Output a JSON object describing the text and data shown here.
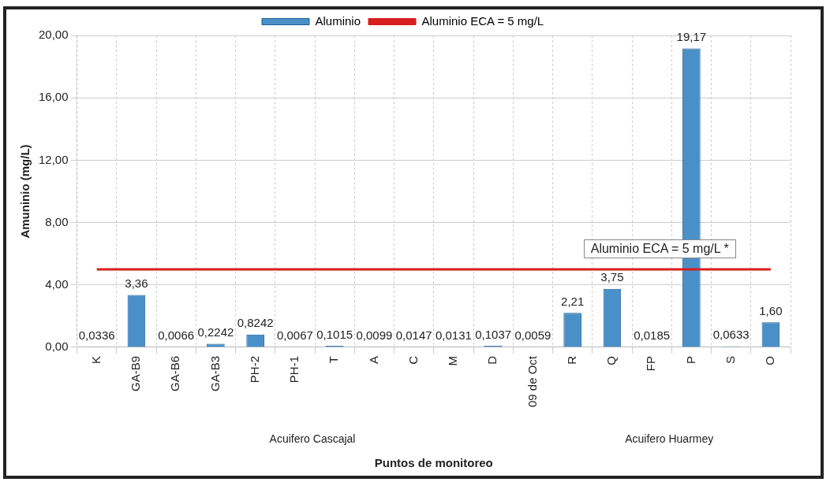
{
  "chart_data": {
    "type": "bar",
    "xlabel": "Puntos de monitoreo",
    "ylabel": "Amuninio (mg/L)",
    "categories": [
      "K",
      "GA-B9",
      "GA-B6",
      "GA-B3",
      "PH-2",
      "PH-1",
      "T",
      "A",
      "C",
      "M",
      "D",
      "09 de Oct",
      "R",
      "Q",
      "FP",
      "P",
      "S",
      "O"
    ],
    "series": [
      {
        "name": "Aluminio",
        "color": "#4a90c8",
        "values": [
          0.0336,
          3.36,
          0.0066,
          0.2242,
          0.8242,
          0.0067,
          0.1015,
          0.0099,
          0.0147,
          0.0131,
          0.1037,
          0.0059,
          2.21,
          3.75,
          0.0185,
          19.17,
          0.0633,
          1.6
        ],
        "value_labels": [
          "0,0336",
          "3,36",
          "0,0066",
          "0,2242",
          "0,8242",
          "0,0067",
          "0,1015",
          "0,0099",
          "0,0147",
          "0,0131",
          "0,1037",
          "0,0059",
          "2,21",
          "3,75",
          "0,0185",
          "19,17",
          "0,0633",
          "1,60"
        ]
      },
      {
        "type": "line",
        "name": "Aluminio ECA = 5 mg/L",
        "color": "#d81e1e",
        "values": [
          5,
          5,
          5,
          5,
          5,
          5,
          5,
          5,
          5,
          5,
          5,
          5,
          5,
          5,
          5,
          5,
          5,
          5
        ]
      }
    ],
    "ylim": [
      0,
      20
    ],
    "yticks": [
      {
        "value": 0,
        "label": "0,00"
      },
      {
        "value": 4,
        "label": "4,00"
      },
      {
        "value": 8,
        "label": "8,00"
      },
      {
        "value": 12,
        "label": "12,00"
      },
      {
        "value": 16,
        "label": "16,00"
      },
      {
        "value": 20,
        "label": "20,00"
      }
    ],
    "annotations": [
      "Acuifero Cascajal",
      "Acuifero Huarmey",
      "Aluminio ECA = 5 mg/L *"
    ],
    "grid": true,
    "legend": "top"
  }
}
